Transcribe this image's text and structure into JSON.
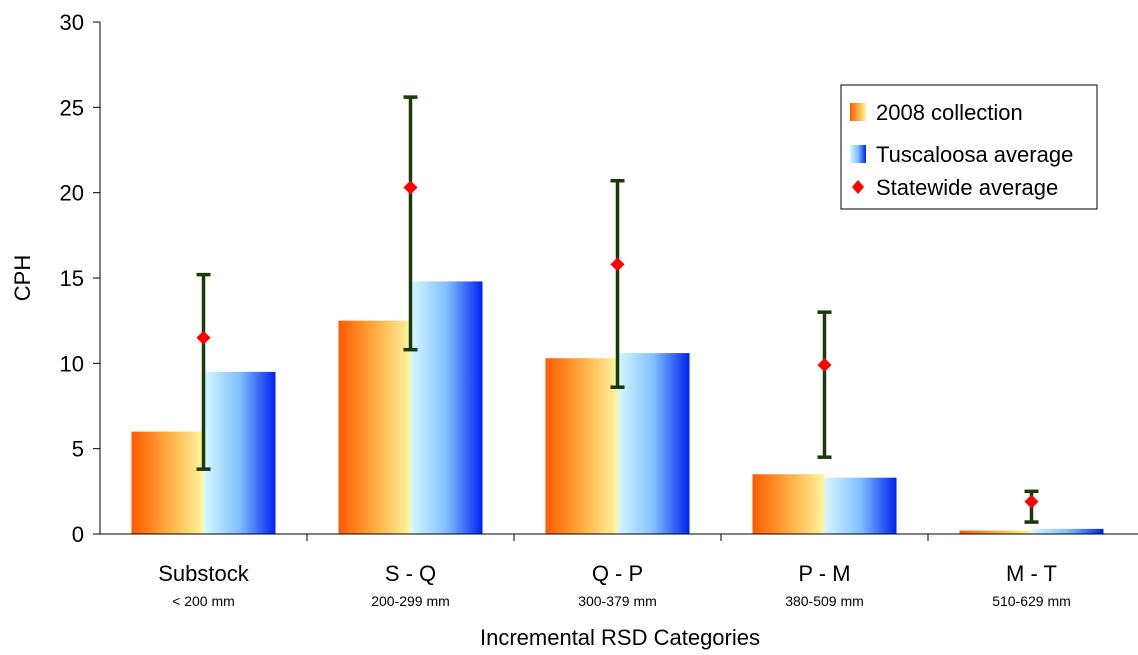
{
  "chart_data": {
    "type": "bar",
    "xlabel": "Incremental RSD Categories",
    "ylabel": "CPH",
    "ylim": [
      0,
      30
    ],
    "yticks": [
      0,
      5,
      10,
      15,
      20,
      25,
      30
    ],
    "grid": false,
    "legend_position": "top-right",
    "categories": [
      {
        "label": "Substock",
        "sublabel": "< 200 mm"
      },
      {
        "label": "S - Q",
        "sublabel": "200-299 mm"
      },
      {
        "label": "Q - P",
        "sublabel": "300-379 mm"
      },
      {
        "label": "P - M",
        "sublabel": "380-509 mm"
      },
      {
        "label": "M - T",
        "sublabel": "510-629 mm"
      }
    ],
    "series": [
      {
        "name": "2008 collection",
        "kind": "bar",
        "values": [
          6.0,
          12.5,
          10.3,
          3.5,
          0.2
        ],
        "gradient": [
          "#ff5a00",
          "#ffb347",
          "#fff5a0"
        ]
      },
      {
        "name": "Tuscaloosa average",
        "kind": "bar",
        "values": [
          9.5,
          14.8,
          10.6,
          3.3,
          0.3
        ],
        "gradient": [
          "#d8f8ff",
          "#80c0ff",
          "#0022ee"
        ]
      },
      {
        "name": "Statewide average",
        "kind": "point",
        "values": [
          11.5,
          20.3,
          15.8,
          9.9,
          1.9
        ],
        "color": "#ff0000",
        "error_low": [
          3.8,
          10.8,
          8.6,
          4.5,
          0.7
        ],
        "error_high": [
          15.2,
          25.6,
          20.7,
          13.0,
          2.5
        ],
        "error_color": "#1a3a0a"
      }
    ]
  }
}
